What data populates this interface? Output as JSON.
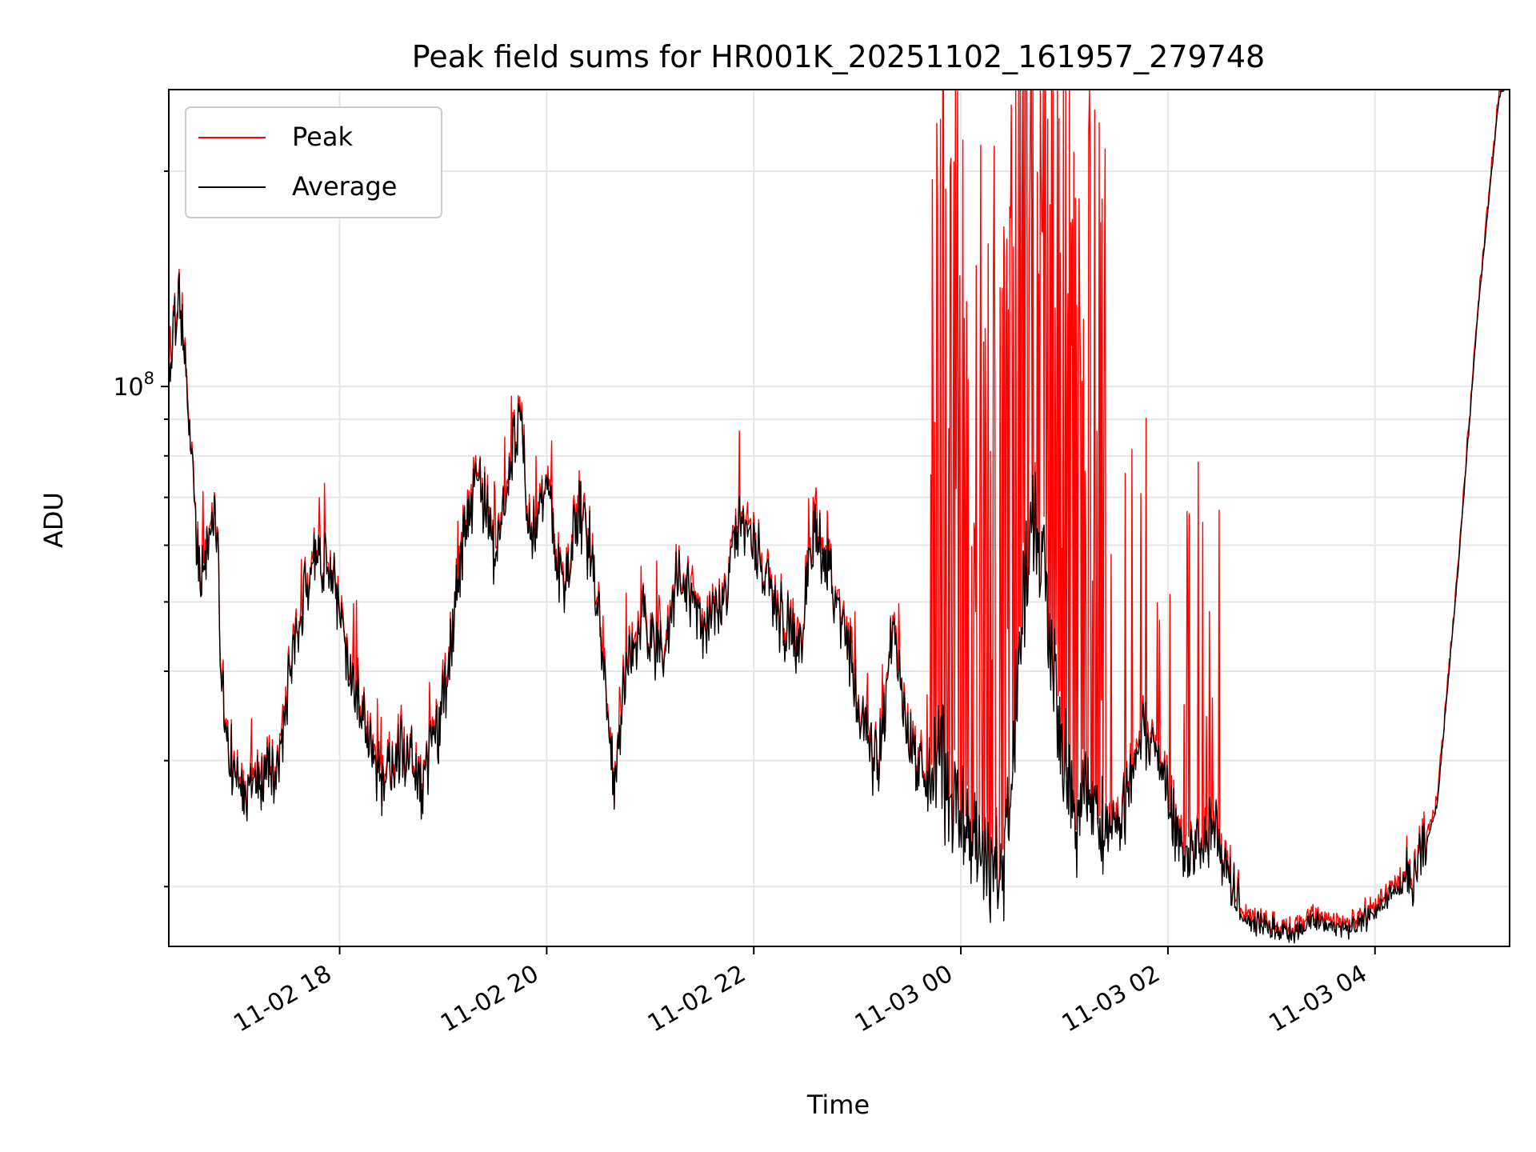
{
  "chart_data": {
    "type": "line",
    "title": "Peak field sums for HR001K_20251102_161957_279748",
    "xlabel": "Time",
    "ylabel": "ADU",
    "y_scale": "log",
    "x_range_hours": [
      16.35,
      29.3
    ],
    "y_range": [
      16500000,
      260000000
    ],
    "y_major_ticks": [
      {
        "value": 100000000,
        "label_base": "10",
        "label_exp": "8"
      }
    ],
    "y_minor_ticks": [
      20000000,
      30000000,
      40000000,
      50000000,
      60000000,
      70000000,
      80000000,
      90000000,
      200000000
    ],
    "x_ticks": [
      {
        "hours": 18,
        "label": "11-02 18"
      },
      {
        "hours": 20,
        "label": "11-02 20"
      },
      {
        "hours": 22,
        "label": "11-02 22"
      },
      {
        "hours": 24,
        "label": "11-03 00"
      },
      {
        "hours": 26,
        "label": "11-03 02"
      },
      {
        "hours": 28,
        "label": "11-03 04"
      }
    ],
    "grid": true,
    "legend": {
      "placement": "top-left",
      "entries": [
        {
          "name": "Peak",
          "color": "#ff0000"
        },
        {
          "name": "Average",
          "color": "#000000"
        }
      ]
    },
    "series": [
      {
        "name": "Average",
        "color": "#000000",
        "anchors": [
          [
            16.35,
            105
          ],
          [
            16.45,
            135
          ],
          [
            16.55,
            90
          ],
          [
            16.65,
            52
          ],
          [
            16.8,
            68
          ],
          [
            16.88,
            35
          ],
          [
            17.0,
            27
          ],
          [
            17.2,
            28
          ],
          [
            17.4,
            30
          ],
          [
            17.55,
            43
          ],
          [
            17.75,
            60
          ],
          [
            17.95,
            53
          ],
          [
            18.1,
            40
          ],
          [
            18.25,
            33
          ],
          [
            18.4,
            28
          ],
          [
            18.6,
            31
          ],
          [
            18.8,
            28
          ],
          [
            18.95,
            33
          ],
          [
            19.05,
            40
          ],
          [
            19.2,
            62
          ],
          [
            19.35,
            75
          ],
          [
            19.5,
            58
          ],
          [
            19.65,
            78
          ],
          [
            19.75,
            92
          ],
          [
            19.85,
            60
          ],
          [
            20.0,
            75
          ],
          [
            20.15,
            52
          ],
          [
            20.3,
            68
          ],
          [
            20.45,
            57
          ],
          [
            20.55,
            42
          ],
          [
            20.65,
            27
          ],
          [
            20.75,
            38
          ],
          [
            20.9,
            48
          ],
          [
            21.1,
            42
          ],
          [
            21.3,
            56
          ],
          [
            21.5,
            46
          ],
          [
            21.7,
            50
          ],
          [
            21.9,
            66
          ],
          [
            22.1,
            55
          ],
          [
            22.3,
            46
          ],
          [
            22.45,
            44
          ],
          [
            22.6,
            63
          ],
          [
            22.75,
            52
          ],
          [
            22.9,
            44
          ],
          [
            23.05,
            33
          ],
          [
            23.2,
            29
          ],
          [
            23.35,
            47
          ],
          [
            23.5,
            32
          ],
          [
            23.65,
            28
          ],
          [
            23.8,
            30
          ],
          [
            23.95,
            26
          ],
          [
            24.1,
            24
          ],
          [
            24.3,
            22
          ],
          [
            24.4,
            20
          ],
          [
            24.5,
            30
          ],
          [
            24.6,
            50
          ],
          [
            24.7,
            62
          ],
          [
            24.8,
            55
          ],
          [
            24.9,
            40
          ],
          [
            25.0,
            30
          ],
          [
            25.1,
            25
          ],
          [
            25.3,
            26
          ],
          [
            25.5,
            24
          ],
          [
            25.6,
            26
          ],
          [
            25.75,
            33
          ],
          [
            25.9,
            32
          ],
          [
            26.05,
            25
          ],
          [
            26.15,
            21.5
          ],
          [
            26.3,
            23
          ],
          [
            26.45,
            25
          ],
          [
            26.55,
            21
          ],
          [
            26.65,
            19
          ],
          [
            26.8,
            17.8
          ],
          [
            27.0,
            17.5
          ],
          [
            27.2,
            17.2
          ],
          [
            27.4,
            17.9
          ],
          [
            27.6,
            17.6
          ],
          [
            27.8,
            17.4
          ],
          [
            28.0,
            18.5
          ],
          [
            28.2,
            19.8
          ],
          [
            28.4,
            20.5
          ],
          [
            28.6,
            26
          ],
          [
            28.8,
            55
          ],
          [
            29.0,
            130
          ],
          [
            29.2,
            255
          ],
          [
            29.3,
            265
          ]
        ]
      },
      {
        "name": "Peak",
        "color": "#ff0000",
        "spike_window_hours": [
          23.7,
          25.4
        ],
        "spike_max": 260
      }
    ]
  }
}
